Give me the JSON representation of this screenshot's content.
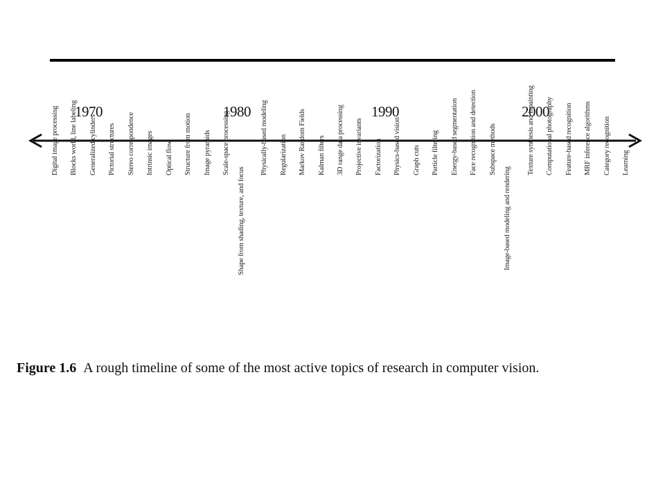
{
  "timeline": {
    "years": [
      "1970",
      "1980",
      "1990",
      "2000"
    ],
    "topics": [
      "Digital image processing",
      "Blocks world, line labeling",
      "Generalized cylinders",
      "Pictorial structures",
      "Stereo correspondence",
      "Intrinsic images",
      "Optical flow",
      "Structure from motion",
      "Image pyramids",
      "Scale-space processing",
      "Shape from shading, texture, and focus",
      "Physically-based modeling",
      "Regularization",
      "Markov Random Fields",
      "Kalman filters",
      "3D range data processing",
      "Projective invariants",
      "Factorization",
      "Physics-based vision",
      "Graph cuts",
      "Particle filtering",
      "Energy-based segmentation",
      "Face recognition and detection",
      "Subspace methods",
      "Image-based modeling and rendering",
      "Texture synthesis and inpainting",
      "Computational photography",
      "Feature-based recognition",
      "MRF inference algorithms",
      "Category recognition",
      "Learning"
    ]
  },
  "caption": {
    "label": "Figure 1.6",
    "text": "A rough timeline of some of the most active topics of research in computer vision."
  },
  "colors": {
    "ink": "#111111",
    "background": "#ffffff"
  }
}
